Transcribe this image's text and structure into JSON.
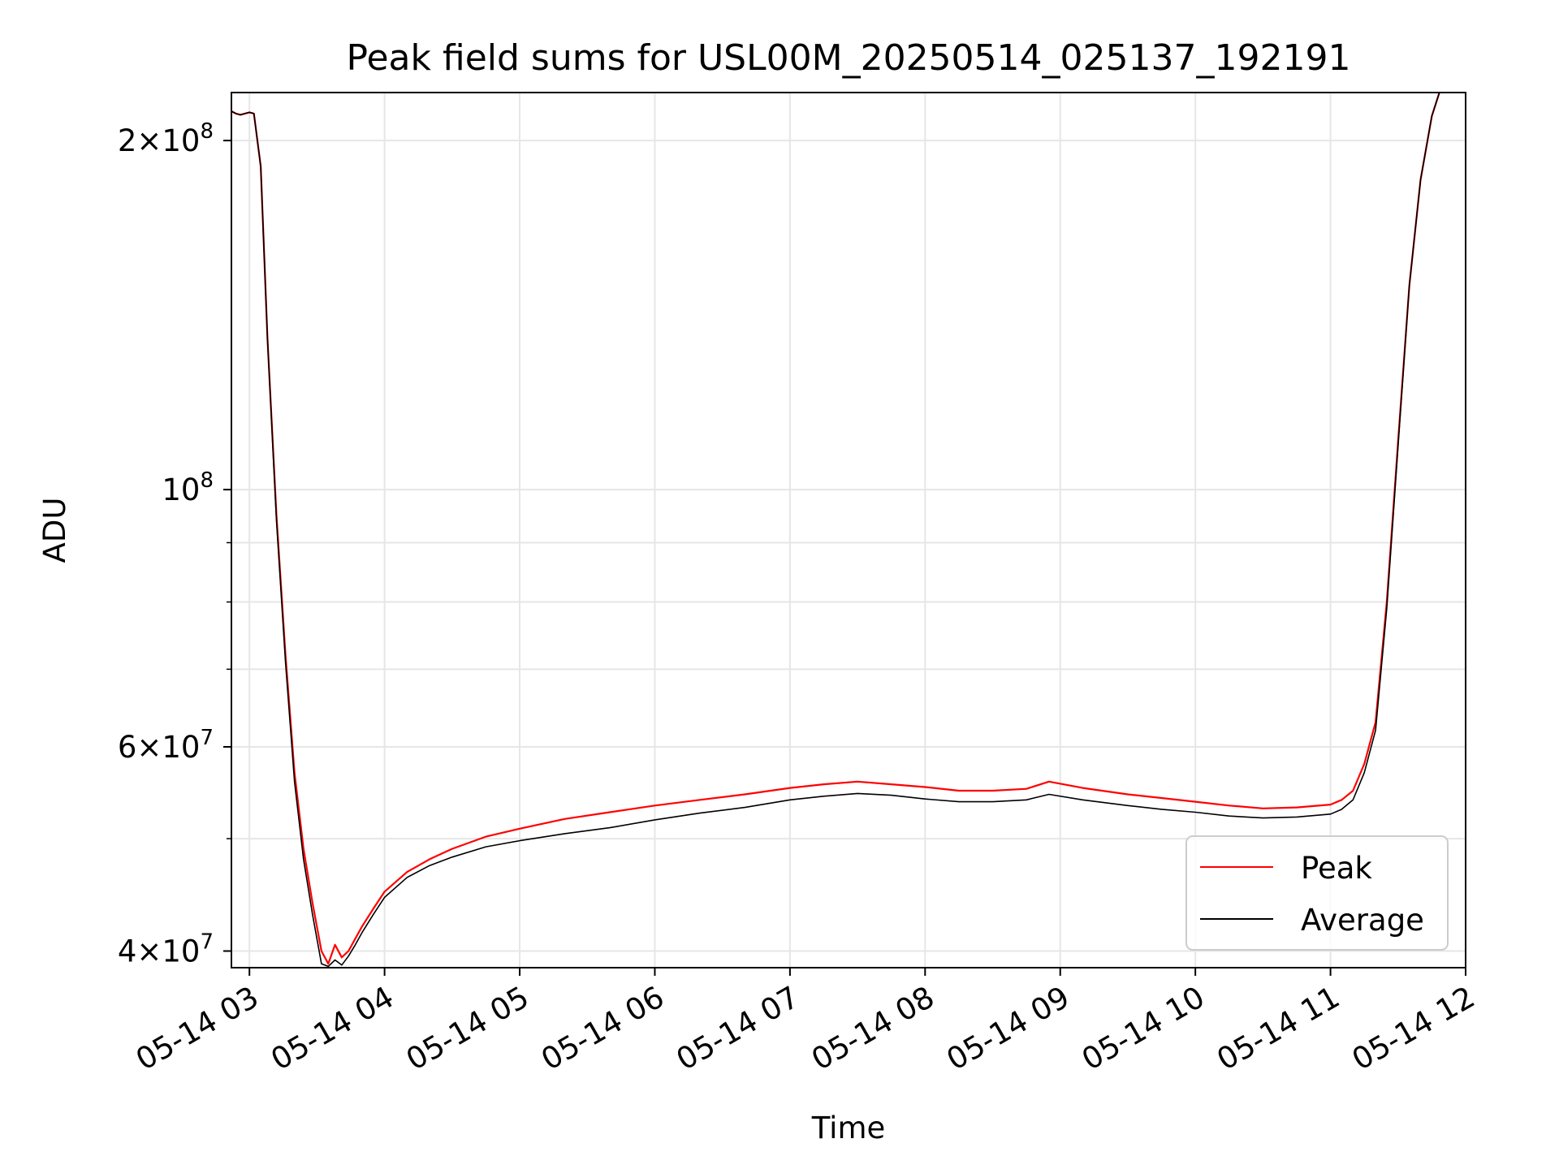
{
  "chart_data": {
    "type": "line",
    "title": "Peak field sums for USL00M_20250514_025137_192191",
    "xlabel": "Time",
    "ylabel": "ADU",
    "y_scale": "log",
    "grid": true,
    "legend_placement": "lower-right",
    "xlim": [
      "2025-05-14 02:52",
      "2025-05-14 12:00"
    ],
    "ylim": [
      38700000,
      220000000
    ],
    "x_ticks": [
      {
        "value": "2025-05-14 03:00",
        "label": "05-14 03"
      },
      {
        "value": "2025-05-14 04:00",
        "label": "05-14 04"
      },
      {
        "value": "2025-05-14 05:00",
        "label": "05-14 05"
      },
      {
        "value": "2025-05-14 06:00",
        "label": "05-14 06"
      },
      {
        "value": "2025-05-14 07:00",
        "label": "05-14 07"
      },
      {
        "value": "2025-05-14 08:00",
        "label": "05-14 08"
      },
      {
        "value": "2025-05-14 09:00",
        "label": "05-14 09"
      },
      {
        "value": "2025-05-14 10:00",
        "label": "05-14 10"
      },
      {
        "value": "2025-05-14 11:00",
        "label": "05-14 11"
      },
      {
        "value": "2025-05-14 12:00",
        "label": "05-14 12"
      }
    ],
    "y_ticks": [
      {
        "value": 40000000,
        "base": "4×10",
        "exp": "7"
      },
      {
        "value": 60000000,
        "base": "6×10",
        "exp": "7"
      },
      {
        "value": 100000000,
        "base": "10",
        "exp": "8"
      },
      {
        "value": 200000000,
        "base": "2×10",
        "exp": "8"
      }
    ],
    "y_minor_ticks": [
      50000000,
      70000000,
      80000000,
      90000000
    ],
    "series": [
      {
        "name": "Peak",
        "color": "#ff0000",
        "x": [
          "2025-05-14 02:52",
          "2025-05-14 02:54",
          "2025-05-14 02:56",
          "2025-05-14 02:58",
          "2025-05-14 03:00",
          "2025-05-14 03:02",
          "2025-05-14 03:05",
          "2025-05-14 03:08",
          "2025-05-14 03:12",
          "2025-05-14 03:16",
          "2025-05-14 03:20",
          "2025-05-14 03:24",
          "2025-05-14 03:28",
          "2025-05-14 03:32",
          "2025-05-14 03:35",
          "2025-05-14 03:38",
          "2025-05-14 03:41",
          "2025-05-14 03:44",
          "2025-05-14 03:47",
          "2025-05-14 03:50",
          "2025-05-14 03:55",
          "2025-05-14 04:00",
          "2025-05-14 04:10",
          "2025-05-14 04:20",
          "2025-05-14 04:30",
          "2025-05-14 04:45",
          "2025-05-14 05:00",
          "2025-05-14 05:20",
          "2025-05-14 05:40",
          "2025-05-14 06:00",
          "2025-05-14 06:20",
          "2025-05-14 06:40",
          "2025-05-14 07:00",
          "2025-05-14 07:15",
          "2025-05-14 07:30",
          "2025-05-14 07:45",
          "2025-05-14 08:00",
          "2025-05-14 08:15",
          "2025-05-14 08:30",
          "2025-05-14 08:45",
          "2025-05-14 08:55",
          "2025-05-14 09:10",
          "2025-05-14 09:30",
          "2025-05-14 09:45",
          "2025-05-14 10:00",
          "2025-05-14 10:15",
          "2025-05-14 10:30",
          "2025-05-14 10:45",
          "2025-05-14 11:00",
          "2025-05-14 11:05",
          "2025-05-14 11:10",
          "2025-05-14 11:15",
          "2025-05-14 11:20",
          "2025-05-14 11:25",
          "2025-05-14 11:30",
          "2025-05-14 11:35",
          "2025-05-14 11:40",
          "2025-05-14 11:45",
          "2025-05-14 11:49"
        ],
        "y": [
          212000000,
          211000000,
          210500000,
          211000000,
          211500000,
          211000000,
          190000000,
          135000000,
          95000000,
          72000000,
          57000000,
          49000000,
          44000000,
          40000000,
          39000000,
          40500000,
          39500000,
          40000000,
          41000000,
          42000000,
          43500000,
          45000000,
          46800000,
          48000000,
          49000000,
          50200000,
          51000000,
          52000000,
          52700000,
          53400000,
          54000000,
          54600000,
          55300000,
          55700000,
          56000000,
          55700000,
          55400000,
          55000000,
          55000000,
          55200000,
          56000000,
          55300000,
          54600000,
          54200000,
          53800000,
          53400000,
          53100000,
          53200000,
          53500000,
          54000000,
          55000000,
          58000000,
          63000000,
          80000000,
          110000000,
          150000000,
          185000000,
          210000000,
          222000000
        ]
      },
      {
        "name": "Average",
        "color": "#000000",
        "x": [
          "2025-05-14 02:52",
          "2025-05-14 02:54",
          "2025-05-14 02:56",
          "2025-05-14 02:58",
          "2025-05-14 03:00",
          "2025-05-14 03:02",
          "2025-05-14 03:05",
          "2025-05-14 03:08",
          "2025-05-14 03:12",
          "2025-05-14 03:16",
          "2025-05-14 03:20",
          "2025-05-14 03:24",
          "2025-05-14 03:28",
          "2025-05-14 03:32",
          "2025-05-14 03:35",
          "2025-05-14 03:38",
          "2025-05-14 03:41",
          "2025-05-14 03:44",
          "2025-05-14 03:47",
          "2025-05-14 03:50",
          "2025-05-14 03:55",
          "2025-05-14 04:00",
          "2025-05-14 04:10",
          "2025-05-14 04:20",
          "2025-05-14 04:30",
          "2025-05-14 04:45",
          "2025-05-14 05:00",
          "2025-05-14 05:20",
          "2025-05-14 05:40",
          "2025-05-14 06:00",
          "2025-05-14 06:20",
          "2025-05-14 06:40",
          "2025-05-14 07:00",
          "2025-05-14 07:15",
          "2025-05-14 07:30",
          "2025-05-14 07:45",
          "2025-05-14 08:00",
          "2025-05-14 08:15",
          "2025-05-14 08:30",
          "2025-05-14 08:45",
          "2025-05-14 08:55",
          "2025-05-14 09:10",
          "2025-05-14 09:30",
          "2025-05-14 09:45",
          "2025-05-14 10:00",
          "2025-05-14 10:15",
          "2025-05-14 10:30",
          "2025-05-14 10:45",
          "2025-05-14 11:00",
          "2025-05-14 11:05",
          "2025-05-14 11:10",
          "2025-05-14 11:15",
          "2025-05-14 11:20",
          "2025-05-14 11:25",
          "2025-05-14 11:30",
          "2025-05-14 11:35",
          "2025-05-14 11:40",
          "2025-05-14 11:45",
          "2025-05-14 11:49"
        ],
        "y": [
          212000000,
          211000000,
          210500000,
          211000000,
          211500000,
          211000000,
          190000000,
          135000000,
          94000000,
          71000000,
          56000000,
          48000000,
          43000000,
          39000000,
          38800000,
          39300000,
          38900000,
          39600000,
          40500000,
          41500000,
          43000000,
          44500000,
          46300000,
          47400000,
          48200000,
          49200000,
          49800000,
          50500000,
          51100000,
          51900000,
          52600000,
          53200000,
          54000000,
          54400000,
          54700000,
          54500000,
          54100000,
          53800000,
          53800000,
          54000000,
          54600000,
          54000000,
          53400000,
          53000000,
          52700000,
          52300000,
          52100000,
          52200000,
          52500000,
          53000000,
          54000000,
          57000000,
          62000000,
          79000000,
          109000000,
          150000000,
          185000000,
          210000000,
          222000000
        ]
      }
    ]
  }
}
